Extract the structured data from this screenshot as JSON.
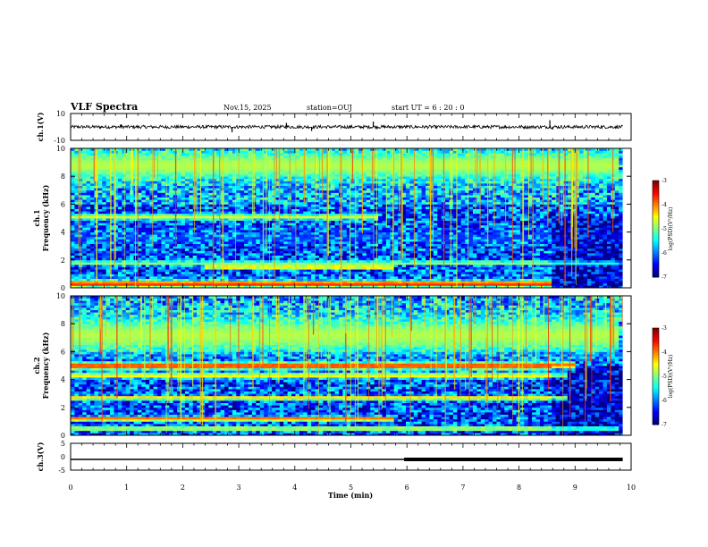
{
  "header": {
    "title": "VLF Spectra",
    "date": "Nov.15, 2025",
    "station": "station=OUJ",
    "start": "start  UT =   6 : 20 : 0"
  },
  "chart_data": [
    {
      "type": "line",
      "panel": "ch1-waveform",
      "ylabel": "ch.1(V)",
      "ylim": [
        -10,
        10
      ],
      "yticks": [
        "10",
        "-10"
      ],
      "baseline": 0,
      "noise_amplitude": 1.2,
      "spikes": [
        [
          0.9,
          2
        ],
        [
          2.88,
          -4
        ],
        [
          3.85,
          3
        ],
        [
          4.3,
          -3
        ],
        [
          5.4,
          4
        ],
        [
          8.55,
          5
        ],
        [
          8.6,
          -2
        ]
      ]
    },
    {
      "type": "heatmap",
      "panel": "ch1-spectrogram",
      "ylabel": "ch.1\nFrequency (kHz)",
      "ylim": [
        0,
        10
      ],
      "yticks": [
        "0",
        "2",
        "4",
        "6",
        "8",
        "10"
      ],
      "xlim": [
        0,
        9.85
      ],
      "colorbar": {
        "label": "log(PSD)(V²/Hz)",
        "range": [
          -7,
          -3
        ],
        "ticks": [
          "-3",
          "-4",
          "-5",
          "-6",
          "-7"
        ]
      },
      "bands": [
        {
          "f": 0.3,
          "w": 0.25,
          "level": -3.6,
          "t0": 0,
          "t1": 8.6
        },
        {
          "f": 1.5,
          "w": 0.12,
          "level": -3.7,
          "t0": 2.4,
          "t1": 5.8
        },
        {
          "f": 1.8,
          "w": 0.15,
          "level": -4.8,
          "t0": 0,
          "t1": 9.8
        },
        {
          "f": 3.6,
          "w": 0.4,
          "level": -6.3,
          "t0": 0,
          "t1": 9.8
        },
        {
          "f": 4.2,
          "w": 0.2,
          "level": -6.6,
          "t0": 0,
          "t1": 9.8
        },
        {
          "f": 5.1,
          "w": 0.2,
          "level": -4.6,
          "t0": 0,
          "t1": 5.5
        },
        {
          "f": 8.8,
          "w": 1.0,
          "level": -4.8,
          "t0": 0,
          "t1": 9.8
        }
      ]
    },
    {
      "type": "heatmap",
      "panel": "ch2-spectrogram",
      "ylabel": "ch.2\nFrequency (kHz)",
      "ylim": [
        0,
        10
      ],
      "yticks": [
        "0",
        "2",
        "4",
        "6",
        "8",
        "10"
      ],
      "xlim": [
        0,
        9.85
      ],
      "colorbar": {
        "label": "log(PSD)(V²/Hz)",
        "range": [
          -7,
          -3
        ],
        "ticks": [
          "-3",
          "-4",
          "-5",
          "-6",
          "-7"
        ]
      },
      "bands": [
        {
          "f": 0.5,
          "w": 0.15,
          "level": -4.5,
          "t0": 0,
          "t1": 9.8
        },
        {
          "f": 1.2,
          "w": 0.15,
          "level": -3.7,
          "t0": 0,
          "t1": 5.8
        },
        {
          "f": 2.7,
          "w": 0.15,
          "level": -4.2,
          "t0": 0,
          "t1": 8.9
        },
        {
          "f": 4.3,
          "w": 0.2,
          "level": -4.4,
          "t0": 0,
          "t1": 8.9
        },
        {
          "f": 5.0,
          "w": 0.25,
          "level": -3.6,
          "t0": 0,
          "t1": 9.0
        },
        {
          "f": 7.2,
          "w": 1.2,
          "level": -4.8,
          "t0": 0,
          "t1": 9.8
        }
      ]
    },
    {
      "type": "line",
      "panel": "ch3-signal",
      "ylabel": "ch.3(V)",
      "ylim": [
        -5,
        5
      ],
      "yticks": [
        "5",
        "0",
        "-5"
      ],
      "segments": [
        {
          "t0": 0,
          "t1": 5.95,
          "v": -1,
          "width": 1.5
        },
        {
          "t0": 5.95,
          "t1": 9.85,
          "v": -1,
          "width": 4
        }
      ]
    }
  ],
  "xaxis": {
    "label": "Time  (min)",
    "range": [
      0,
      10
    ],
    "ticks": [
      "0",
      "1",
      "2",
      "3",
      "4",
      "5",
      "6",
      "7",
      "8",
      "9",
      "10"
    ]
  }
}
